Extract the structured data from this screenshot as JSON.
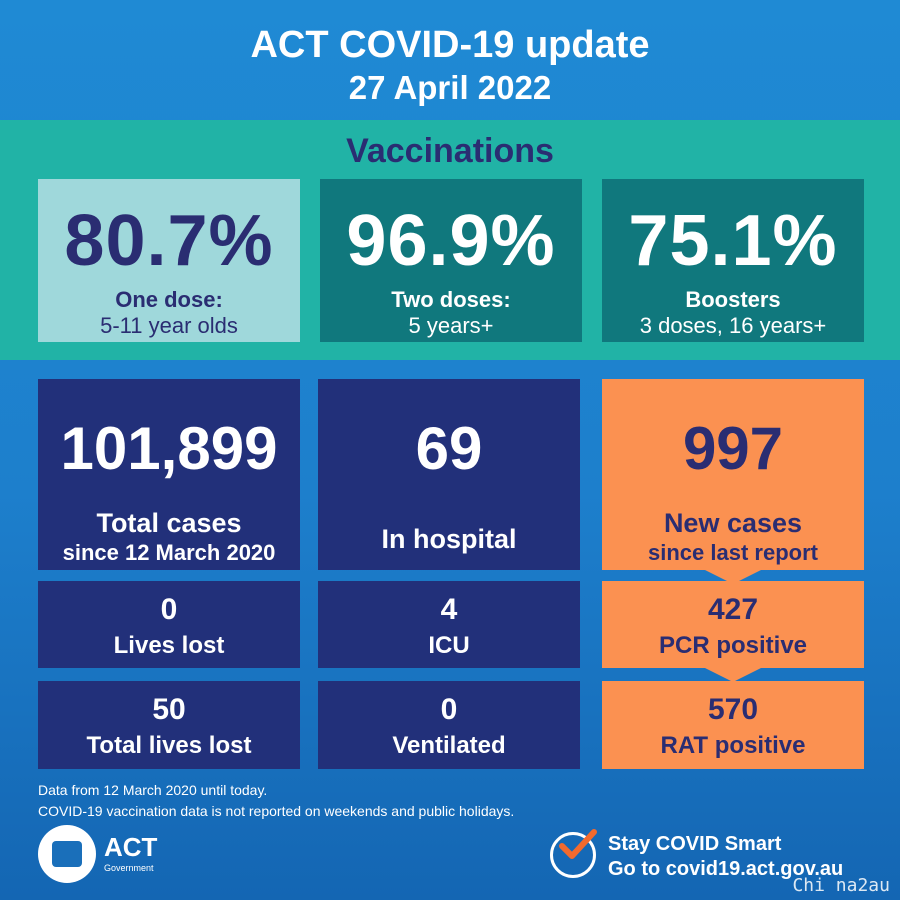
{
  "header": {
    "title": "ACT COVID-19 update",
    "date": "27 April 2022"
  },
  "vaccinations": {
    "title": "Vaccinations",
    "cards": [
      {
        "value": "80.7%",
        "label": "One dose:",
        "sub": "5-11 year olds"
      },
      {
        "value": "96.9%",
        "label": "Two doses:",
        "sub": "5 years+"
      },
      {
        "value": "75.1%",
        "label": "Boosters",
        "sub": "3 doses, 16 years+"
      }
    ]
  },
  "stats": {
    "total_cases": {
      "value": "101,899",
      "label": "Total cases",
      "sub": "since 12 March 2020"
    },
    "hospital": {
      "value": "69",
      "label": "In hospital"
    },
    "new_cases": {
      "value": "997",
      "label": "New cases",
      "sub": "since last report"
    },
    "lives_lost": {
      "value": "0",
      "label": "Lives lost"
    },
    "icu": {
      "value": "4",
      "label": "ICU"
    },
    "pcr": {
      "value": "427",
      "label": "PCR positive"
    },
    "total_lives_lost": {
      "value": "50",
      "label": "Total lives lost"
    },
    "ventilated": {
      "value": "0",
      "label": "Ventilated"
    },
    "rat": {
      "value": "570",
      "label": "RAT positive"
    }
  },
  "footer": {
    "note1": "Data from 12 March 2020 until today.",
    "note2": "COVID-19 vaccination data is not reported on weekends and public holidays.",
    "act_logo": "ACT",
    "act_government": "Government",
    "smart_line1": "Stay COVID Smart",
    "smart_line2": "Go to covid19.act.gov.au",
    "watermark": "Chi na2au"
  },
  "colors": {
    "background": "#1d7fcc",
    "vaccination_band": "#21b3a6",
    "card_light": "#9fd8db",
    "card_dark": "#10787d",
    "navy": "#22307a",
    "orange": "#fb9151",
    "text_dark": "#2a2d72"
  }
}
